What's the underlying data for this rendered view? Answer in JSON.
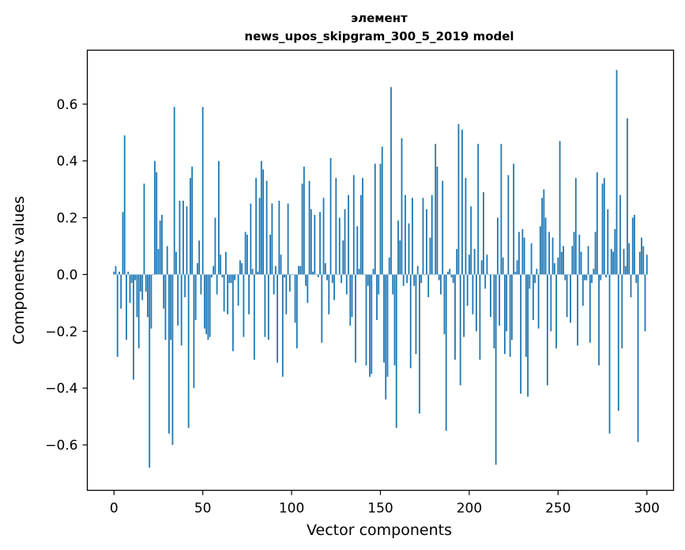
{
  "chart_data": {
    "type": "bar",
    "title_line1": "элемент",
    "title_line2": "news_upos_skipgram_300_5_2019 model",
    "xlabel": "Vector components",
    "ylabel": "Components values",
    "xlim": [
      -15,
      315
    ],
    "ylim": [
      -0.76,
      0.79
    ],
    "x_ticks": [
      0,
      50,
      100,
      150,
      200,
      250,
      300
    ],
    "x_tick_labels": [
      "0",
      "50",
      "100",
      "150",
      "200",
      "250",
      "300"
    ],
    "y_ticks": [
      -0.6,
      -0.4,
      -0.2,
      0.0,
      0.2,
      0.4,
      0.6
    ],
    "y_tick_labels": [
      "−0.6",
      "−0.4",
      "−0.2",
      "0.0",
      "0.2",
      "0.4",
      "0.6"
    ],
    "bar_color": "#1f77b4",
    "values": [
      0.01,
      0.03,
      -0.29,
      0.01,
      -0.12,
      0.22,
      0.49,
      -0.23,
      0.01,
      -0.1,
      -0.03,
      -0.37,
      -0.02,
      -0.15,
      -0.26,
      -0.06,
      -0.09,
      0.32,
      -0.06,
      -0.15,
      -0.68,
      -0.19,
      0.0,
      0.4,
      0.36,
      0.09,
      0.19,
      0.21,
      -0.12,
      -0.23,
      0.1,
      -0.56,
      -0.23,
      -0.6,
      0.59,
      0.08,
      -0.18,
      0.26,
      -0.25,
      0.26,
      -0.08,
      0.24,
      -0.54,
      0.34,
      0.38,
      -0.4,
      -0.16,
      0.04,
      0.12,
      -0.07,
      0.59,
      -0.19,
      -0.21,
      -0.23,
      -0.22,
      -0.01,
      0.03,
      0.2,
      -0.07,
      0.4,
      0.07,
      -0.01,
      -0.13,
      0.08,
      -0.14,
      -0.03,
      -0.03,
      -0.27,
      -0.02,
      0.0,
      -0.11,
      0.05,
      0.04,
      -0.22,
      0.15,
      0.14,
      -0.14,
      0.25,
      0.02,
      -0.3,
      0.34,
      0.01,
      0.27,
      0.4,
      0.37,
      -0.22,
      0.33,
      -0.23,
      0.14,
      0.25,
      -0.07,
      0.03,
      -0.31,
      0.26,
      0.07,
      -0.36,
      -0.01,
      -0.14,
      0.25,
      -0.06,
      0.0,
      0.0,
      -0.17,
      -0.26,
      0.03,
      0.03,
      0.32,
      0.38,
      -0.04,
      -0.1,
      0.33,
      0.23,
      0.01,
      0.21,
      0.0,
      -0.01,
      0.22,
      -0.24,
      0.27,
      0.04,
      -0.02,
      -0.14,
      0.41,
      -0.03,
      -0.09,
      0.34,
      0.0,
      0.2,
      -0.03,
      0.12,
      0.23,
      -0.07,
      0.28,
      -0.18,
      -0.15,
      0.35,
      -0.31,
      0.17,
      0.02,
      0.28,
      0.34,
      0.0,
      -0.32,
      -0.04,
      -0.36,
      -0.35,
      0.02,
      0.39,
      -0.16,
      -0.07,
      0.39,
      0.45,
      -0.31,
      -0.44,
      -0.36,
      0.06,
      0.66,
      -0.07,
      -0.32,
      -0.54,
      0.19,
      0.12,
      0.48,
      -0.04,
      0.28,
      -0.03,
      0.18,
      -0.33,
      0.27,
      -0.04,
      -0.28,
      0.03,
      -0.49,
      -0.03,
      0.27,
      0.0,
      0.23,
      -0.08,
      0.13,
      0.28,
      0.0,
      0.46,
      0.38,
      -0.02,
      -0.07,
      0.33,
      -0.21,
      -0.55,
      0.01,
      0.02,
      -0.01,
      -0.03,
      -0.3,
      0.09,
      0.53,
      -0.39,
      0.51,
      -0.22,
      0.34,
      -0.11,
      0.07,
      0.24,
      -0.14,
      0.09,
      -0.2,
      0.46,
      -0.3,
      0.05,
      0.29,
      -0.05,
      0.07,
      0.0,
      -0.15,
      0.0,
      -0.26,
      -0.67,
      0.2,
      -0.18,
      0.46,
      0.06,
      -0.28,
      -0.2,
      0.35,
      -0.29,
      -0.23,
      0.39,
      0.01,
      0.05,
      0.15,
      -0.42,
      0.16,
      0.13,
      -0.29,
      -0.43,
      -0.05,
      0.11,
      -0.16,
      -0.03,
      0.02,
      -0.19,
      0.17,
      0.27,
      0.3,
      0.2,
      -0.39,
      0.15,
      -0.2,
      0.13,
      0.04,
      -0.26,
      0.06,
      0.47,
      0.08,
      0.1,
      -0.02,
      -0.15,
      0.0,
      -0.17,
      0.1,
      0.15,
      0.34,
      -0.25,
      0.14,
      0.08,
      -0.11,
      -0.02,
      -0.02,
      0.1,
      -0.24,
      -0.03,
      0.02,
      0.15,
      0.36,
      -0.32,
      -0.02,
      0.32,
      0.34,
      -0.01,
      0.23,
      -0.56,
      0.09,
      0.08,
      0.16,
      0.72,
      -0.48,
      0.28,
      -0.26,
      0.09,
      0.03,
      0.55,
      0.11,
      -0.08,
      0.2,
      0.21,
      -0.03,
      -0.59,
      0.08,
      0.13,
      0.1,
      -0.2,
      0.07
    ]
  }
}
